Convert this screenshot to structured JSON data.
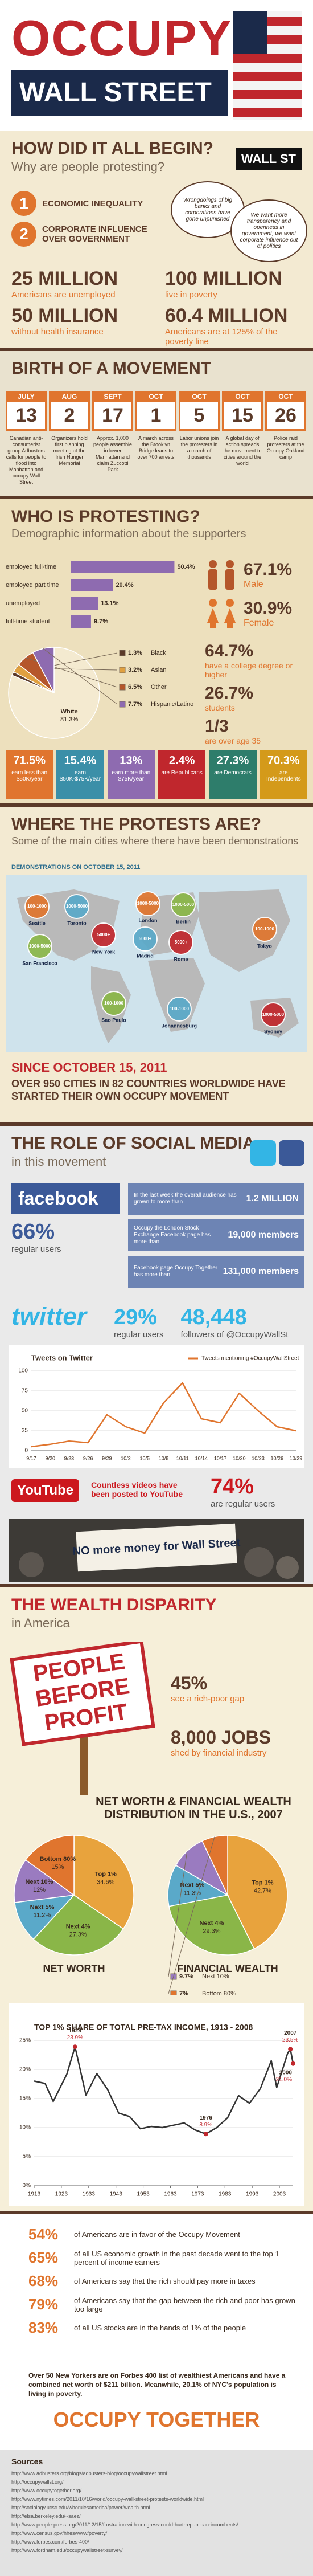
{
  "header": {
    "title": "OCCUPY",
    "subtitle": "WALL STREET"
  },
  "begin": {
    "title": "HOW DID IT ALL BEGIN?",
    "subtitle": "Why are people protesting?",
    "badge": "WALL ST",
    "reasons": [
      {
        "number": "1",
        "text": "ECONOMIC INEQUALITY"
      },
      {
        "number": "2",
        "text": "CORPORATE INFLUENCE OVER GOVERNMENT"
      }
    ],
    "quotes": [
      "Wrongdoings of big banks and corporations have gone unpunished",
      "We want more transparency and openness in government; we want corporate influence out of politics"
    ],
    "stats": [
      {
        "value": "25 MILLION",
        "label": "Americans are unemployed"
      },
      {
        "value": "100 MILLION",
        "label": "live in poverty"
      },
      {
        "value": "50 MILLION",
        "label": "without health insurance"
      },
      {
        "value": "60.4 MILLION",
        "label": "Americans are at 125% of the poverty line"
      }
    ]
  },
  "birth": {
    "title": "BIRTH OF A MOVEMENT",
    "events": [
      {
        "month": "JULY",
        "day": "13",
        "text": "Canadian anti-consumerist group Adbusters calls for people to flood into Manhattan and occupy Wall Street"
      },
      {
        "month": "AUG",
        "day": "2",
        "text": "Organizers hold first planning meeting at the Irish Hunger Memorial"
      },
      {
        "month": "SEPT",
        "day": "17",
        "text": "Approx. 1,000 people assemble in lower Manhattan and claim Zuccotti Park"
      },
      {
        "month": "OCT",
        "day": "1",
        "text": "A march across the Brooklyn Bridge leads to over 700 arrests"
      },
      {
        "month": "OCT",
        "day": "5",
        "text": "Labor unions join the protesters in a march of thousands"
      },
      {
        "month": "OCT",
        "day": "15",
        "text": "A global day of action spreads the movement to cities around the world"
      },
      {
        "month": "OCT",
        "day": "26",
        "text": "Police raid protesters at the Occupy Oakland camp"
      }
    ]
  },
  "who": {
    "title": "WHO IS PROTESTING?",
    "subtitle": "Demographic information about the supporters",
    "employment": {
      "type": "bar",
      "color": "#8e6bb0",
      "categories": [
        "employed full-time",
        "employed part time",
        "unemployed",
        "full-time student"
      ],
      "values": [
        50.4,
        20.4,
        13.1,
        9.7
      ],
      "value_labels": [
        "50.4%",
        "20.4%",
        "13.1%",
        "9.7%"
      ]
    },
    "race": {
      "type": "pie",
      "categories": [
        "White",
        "Black",
        "Asian",
        "Other",
        "Hispanic/Latino"
      ],
      "values": [
        81.3,
        1.3,
        3.2,
        6.5,
        7.7
      ],
      "value_labels": [
        "81.3%",
        "1.3%",
        "3.2%",
        "6.5%",
        "7.7%"
      ],
      "colors": [
        "#f4ead0",
        "#5b3a29",
        "#e0a040",
        "#b5562b",
        "#8e6bb0"
      ]
    },
    "gender": [
      {
        "value": "67.1%",
        "label": "Male"
      },
      {
        "value": "30.9%",
        "label": "Female"
      }
    ],
    "facts": [
      {
        "value": "64.7%",
        "label": "have a college degree or higher"
      },
      {
        "value": "26.7%",
        "label": "students"
      },
      {
        "value": "1/3",
        "label": "are over age 35"
      }
    ],
    "income": [
      {
        "value": "71.5%",
        "label": "earn less than $50K/year"
      },
      {
        "value": "15.4%",
        "label": "earn $50K-$75K/year"
      },
      {
        "value": "13%",
        "label": "earn more than $75K/year"
      },
      {
        "value": "2.4%",
        "label": "are Republicans"
      },
      {
        "value": "27.3%",
        "label": "are Democrats"
      },
      {
        "value": "70.3%",
        "label": "are Independents"
      }
    ]
  },
  "where": {
    "title": "WHERE THE PROTESTS ARE?",
    "subtitle": "Some of the main cities where there have been demonstrations",
    "map_label": "DEMONSTRATIONS ON OCTOBER 15, 2011",
    "cities": [
      {
        "name": "Seattle",
        "count": "100-1000"
      },
      {
        "name": "San Francisco",
        "count": "1000-5000"
      },
      {
        "name": "Toronto",
        "count": "1000-5000"
      },
      {
        "name": "New York",
        "count": "5000+"
      },
      {
        "name": "London",
        "count": "1000-5000"
      },
      {
        "name": "Berlin",
        "count": "1000-5000"
      },
      {
        "name": "Madrid",
        "count": "5000+"
      },
      {
        "name": "Rome",
        "count": "5000+"
      },
      {
        "name": "Tokyo",
        "count": "100-1000"
      },
      {
        "name": "Sao Paulo",
        "count": "100-1000"
      },
      {
        "name": "Johannesburg",
        "count": "100-1000"
      },
      {
        "name": "Sydney",
        "count": "1000-5000"
      }
    ],
    "since": "SINCE OCTOBER 15, 2011",
    "summary": "OVER 950 CITIES IN 82 COUNTRIES WORLDWIDE HAVE STARTED THEIR OWN OCCUPY MOVEMENT"
  },
  "social": {
    "title": "THE ROLE OF SOCIAL MEDIA",
    "subtitle": "in this movement",
    "facebook": {
      "logo": "facebook",
      "percent": "66%",
      "percent_label": "regular users",
      "rows": [
        {
          "text": "In the last week the overall audience has grown to more than",
          "value": "1.2 MILLION"
        },
        {
          "text": "Occupy the London Stock Exchange Facebook page has more than",
          "value": "19,000 members"
        },
        {
          "text": "Facebook page Occupy Together has more than",
          "value": "131,000 members"
        }
      ]
    },
    "twitter": {
      "logo": "twitter",
      "percent": "29%",
      "percent_label": "regular users",
      "followers": "48,448",
      "followers_label": "followers of @OccupyWallSt",
      "chart": {
        "type": "line",
        "title": "Tweets on Twitter",
        "legend": "Tweets mentioning #OccupyWallStreet",
        "color": "#e0752e",
        "categories": [
          "9/17",
          "9/20",
          "9/23",
          "9/26",
          "9/29",
          "10/2",
          "10/5",
          "10/8",
          "10/11",
          "10/14",
          "10/17",
          "10/20",
          "10/23",
          "10/26",
          "10/29"
        ],
        "values": [
          5,
          8,
          12,
          10,
          45,
          30,
          22,
          60,
          85,
          40,
          35,
          72,
          50,
          30,
          25
        ],
        "ylim": [
          0,
          100
        ],
        "yticks": [
          0,
          25,
          50,
          75,
          100
        ]
      }
    },
    "youtube": {
      "logo": "YouTube",
      "text": "Countless videos have been posted to YouTube",
      "percent": "74%",
      "percent_label": "are regular users"
    },
    "photo_sign": "NO more money for Wall Street"
  },
  "wealth": {
    "title": "THE WEALTH DISPARITY",
    "subtitle": "in America",
    "sign": [
      "PEOPLE",
      "BEFORE",
      "PROFIT"
    ],
    "facts": [
      {
        "value": "45%",
        "label": "see a rich-poor gap"
      },
      {
        "value": "8,000 JOBS",
        "label": "shed by financial industry"
      }
    ],
    "distribution_title": "NET WORTH & FINANCIAL WEALTH DISTRIBUTION IN THE U.S., 2007",
    "pies": [
      {
        "type": "pie",
        "title": "NET WORTH",
        "categories": [
          "Top 1%",
          "Next 4%",
          "Next 5%",
          "Next 10%",
          "Bottom 80%"
        ],
        "values": [
          34.6,
          27.3,
          11.2,
          12,
          15
        ],
        "value_labels": [
          "34.6%",
          "27.3%",
          "11.2%",
          "12%",
          "15%"
        ],
        "colors": [
          "#e8a33d",
          "#8ab648",
          "#5aa9c9",
          "#9a7bc0",
          "#e0752e"
        ]
      },
      {
        "type": "pie",
        "title": "FINANCIAL WEALTH",
        "categories": [
          "Top 1%",
          "Next 4%",
          "Next 5%",
          "Next 10%",
          "Bottom 80%"
        ],
        "values": [
          42.7,
          29.3,
          11.3,
          9.7,
          7
        ],
        "value_labels": [
          "42.7%",
          "29.3%",
          "11.3%",
          "9.7%",
          "7%"
        ],
        "colors": [
          "#e8a33d",
          "#8ab648",
          "#5aa9c9",
          "#9a7bc0",
          "#e0752e"
        ]
      }
    ],
    "income_chart": {
      "type": "line",
      "title": "TOP 1% SHARE OF TOTAL PRE-TAX INCOME, 1913 - 2008",
      "color": "#333333",
      "x": [
        1913,
        1917,
        1920,
        1925,
        1928,
        1932,
        1936,
        1940,
        1944,
        1948,
        1952,
        1956,
        1960,
        1964,
        1968,
        1972,
        1976,
        1980,
        1984,
        1988,
        1992,
        1996,
        2000,
        2002,
        2004,
        2006,
        2007,
        2008
      ],
      "values": [
        18,
        17.6,
        14.5,
        19.2,
        23.9,
        15.6,
        19.3,
        16.5,
        12.5,
        11.9,
        9.8,
        10.2,
        10,
        10.4,
        10.8,
        9.6,
        8.9,
        10,
        11.7,
        15.5,
        14.2,
        16.7,
        21.5,
        16.9,
        19.8,
        22.8,
        23.5,
        21
      ],
      "xlim": [
        1913,
        2008
      ],
      "xticks": [
        1913,
        1923,
        1933,
        1943,
        1953,
        1963,
        1973,
        1983,
        1993,
        2003
      ],
      "ylim": [
        0,
        25
      ],
      "yticks": [
        {
          "value": 0,
          "label": "0%"
        },
        {
          "value": 5,
          "label": "5%"
        },
        {
          "value": 10,
          "label": "10%"
        },
        {
          "value": 15,
          "label": "15%"
        },
        {
          "value": 20,
          "label": "20%"
        },
        {
          "value": 25,
          "label": "25%"
        }
      ],
      "annotations": [
        {
          "year": 1928,
          "share": {
            "value": 23.9,
            "label": "23.9%"
          }
        },
        {
          "year": 1976,
          "share": {
            "value": 8.9,
            "label": "8.9%"
          }
        },
        {
          "year": 2007,
          "share": {
            "value": 23.5,
            "label": "23.5%"
          }
        },
        {
          "year": 2008,
          "share": {
            "value": 21,
            "label": "21.0%"
          }
        }
      ]
    }
  },
  "stats": {
    "items": [
      {
        "value": "54%",
        "text": "of Americans are in favor of the Occupy Movement"
      },
      {
        "value": "65%",
        "text": "of all US economic growth in the past decade went to the top 1 percent of income earners"
      },
      {
        "value": "68%",
        "text": "of Americans say that the rich should pay more in taxes"
      },
      {
        "value": "79%",
        "text": "of Americans say that the gap between the rich and poor has grown too large"
      },
      {
        "value": "83%",
        "text": "of all US stocks are in the hands of 1% of the people"
      }
    ],
    "note": "Over 50 New Yorkers are on Forbes 400 list of wealthiest Americans and have a combined net worth of $211 billion. Meanwhile, 20.1% of NYC's population is living in poverty.",
    "closing": "OCCUPY TOGETHER"
  },
  "sources": {
    "title": "Sources",
    "items": [
      "http://www.adbusters.org/blogs/adbusters-blog/occupywallstreet.html",
      "http://occupywallst.org/",
      "http://www.occupytogether.org/",
      "http://www.nytimes.com/2011/10/16/world/occupy-wall-street-protests-worldwide.html",
      "http://sociology.ucsc.edu/whorulesamerica/power/wealth.html",
      "http://elsa.berkeley.edu/~saez/",
      "http://www.people-press.org/2011/12/15/frustration-with-congress-could-hurt-republican-incumbents/",
      "http://www.census.gov/hhes/www/poverty/",
      "http://www.forbes.com/forbes-400/",
      "http://www.fordham.edu/occupywallstreet-survey/"
    ]
  }
}
